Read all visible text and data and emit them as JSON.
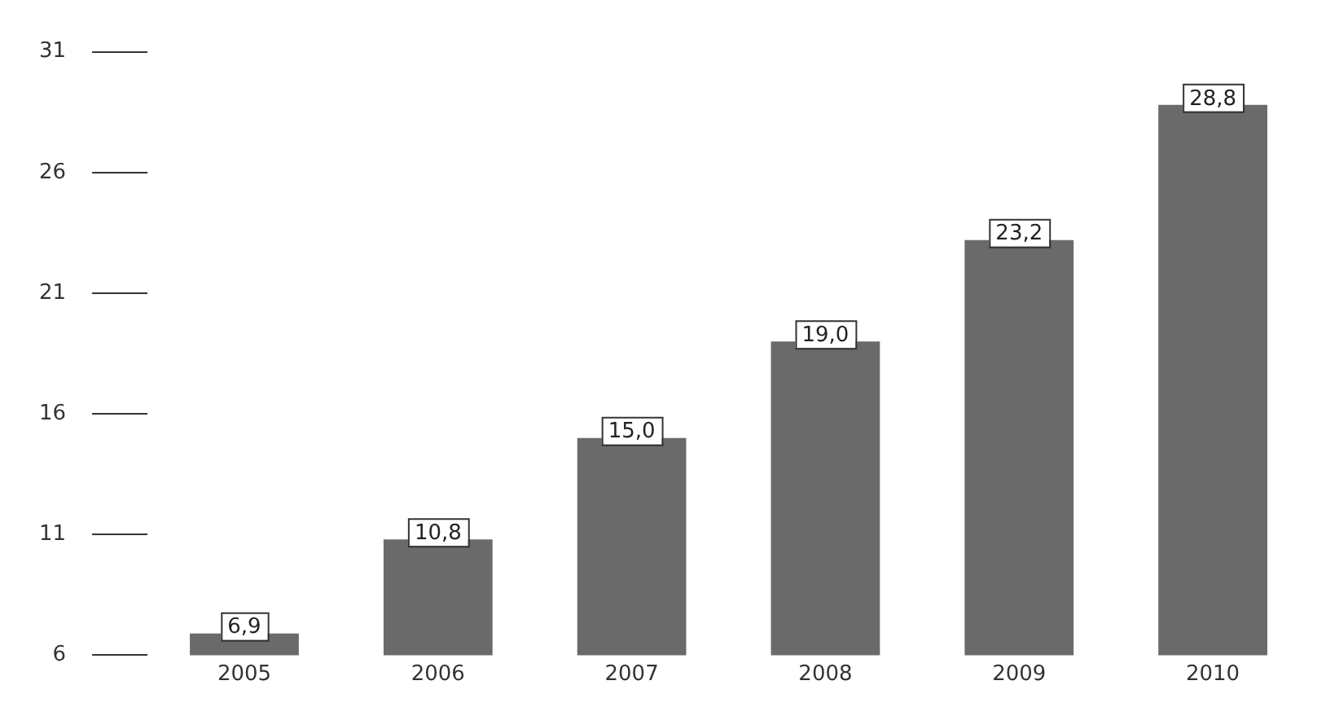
{
  "chart_data": {
    "type": "bar",
    "categories": [
      "2005",
      "2006",
      "2007",
      "2008",
      "2009",
      "2010"
    ],
    "values": [
      6.9,
      10.8,
      15.0,
      19.0,
      23.2,
      28.8
    ],
    "value_labels": [
      "6,9",
      "10,8",
      "15,0",
      "19,0",
      "23,2",
      "28,8"
    ],
    "color": "#6a6a6a",
    "ylim": [
      6,
      31
    ],
    "yticks": [
      6,
      11,
      16,
      21,
      26,
      31
    ],
    "grid": false,
    "legend": false
  }
}
